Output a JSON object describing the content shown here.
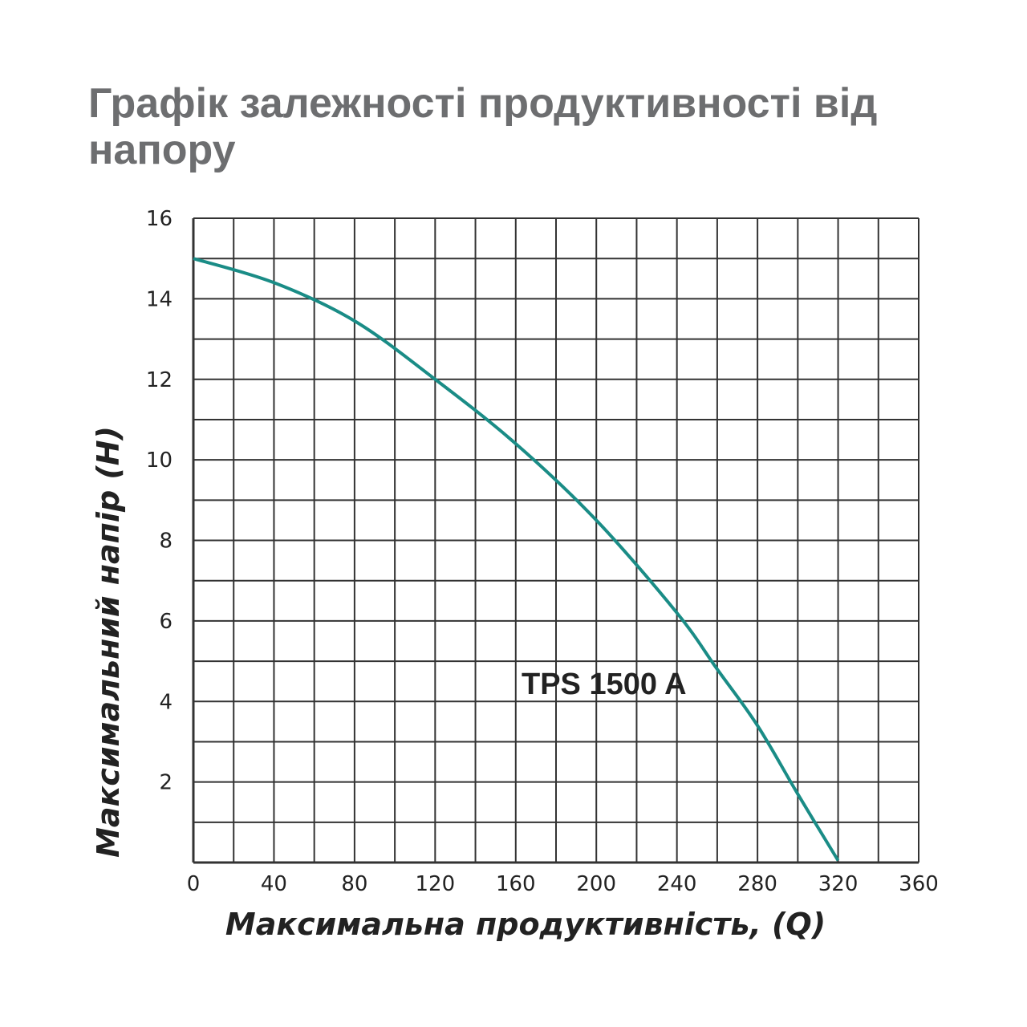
{
  "chart_data": {
    "type": "line",
    "title": "Графік залежності продуктивності від напору",
    "xlabel": "Максимальна продуктивність, (Q)",
    "ylabel": "Максимальний напір (H)",
    "xlim": [
      0,
      360
    ],
    "ylim": [
      0,
      16
    ],
    "xticks": [
      0,
      40,
      80,
      120,
      160,
      200,
      240,
      280,
      320,
      360
    ],
    "yticks": [
      2,
      4,
      6,
      8,
      10,
      12,
      14,
      16
    ],
    "grid": true,
    "x_grid_step": 20,
    "y_grid_step": 1,
    "series": [
      {
        "name": "TPS 1500 A",
        "color": "#1a8c86",
        "x": [
          0,
          40,
          80,
          120,
          160,
          200,
          240,
          260,
          280,
          300,
          320
        ],
        "y": [
          15.0,
          14.4,
          13.45,
          12.0,
          10.4,
          8.5,
          6.2,
          4.8,
          3.4,
          1.7,
          0.05
        ]
      }
    ]
  }
}
